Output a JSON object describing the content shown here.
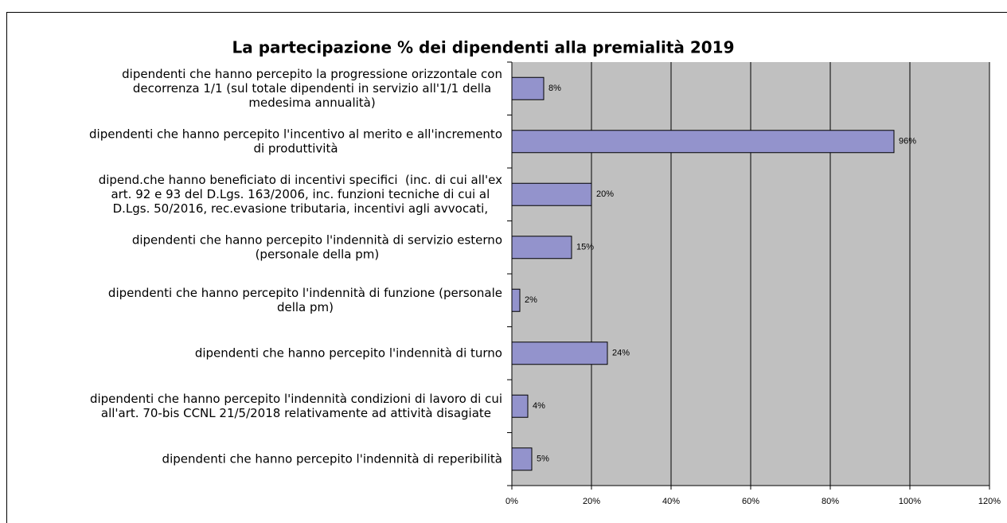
{
  "chart_data": {
    "type": "bar",
    "orientation": "horizontal",
    "title": "La partecipazione % dei dipendenti alla premialità 2019",
    "categories": [
      [
        "dipendenti che hanno percepito la progressione orizzontale con",
        "decorrenza 1/1 (sul totale dipendenti in servizio all'1/1 della",
        "medesima annualità)"
      ],
      [
        "dipendenti che hanno percepito l'incentivo al merito e all'incremento",
        "di produttività"
      ],
      [
        "dipend.che hanno beneficiato di incentivi specifici  (inc. di cui all'ex",
        "art. 92 e 93 del D.Lgs. 163/2006, inc. funzioni tecniche di cui al",
        "D.Lgs. 50/2016, rec.evasione tributaria, incentivi agli avvocati,"
      ],
      [
        "dipendenti che hanno percepito l'indennità di servizio esterno",
        "(personale della pm)"
      ],
      [
        "dipendenti che hanno percepito l'indennità di funzione (personale",
        "della pm)"
      ],
      [
        "dipendenti che hanno percepito l'indennità di turno"
      ],
      [
        "dipendenti che hanno percepito l'indennità condizioni di lavoro di cui",
        "all'art. 70-bis CCNL 21/5/2018 relativamente ad attività disagiate"
      ],
      [
        "dipendenti che hanno percepito l'indennità di reperibilità"
      ]
    ],
    "values": [
      8,
      96,
      20,
      15,
      2,
      24,
      4,
      5
    ],
    "value_labels": [
      "8%",
      "96%",
      "20%",
      "15%",
      "2%",
      "24%",
      "4%",
      "5%"
    ],
    "color": "#9393cc",
    "xlim": [
      0,
      120
    ],
    "xticks": [
      {
        "value": 0,
        "label": "0%"
      },
      {
        "value": 20,
        "label": "20%"
      },
      {
        "value": 40,
        "label": "40%"
      },
      {
        "value": 60,
        "label": "60%"
      },
      {
        "value": 80,
        "label": "80%"
      },
      {
        "value": 100,
        "label": "100%"
      },
      {
        "value": 120,
        "label": "120%"
      }
    ],
    "grid": true
  }
}
